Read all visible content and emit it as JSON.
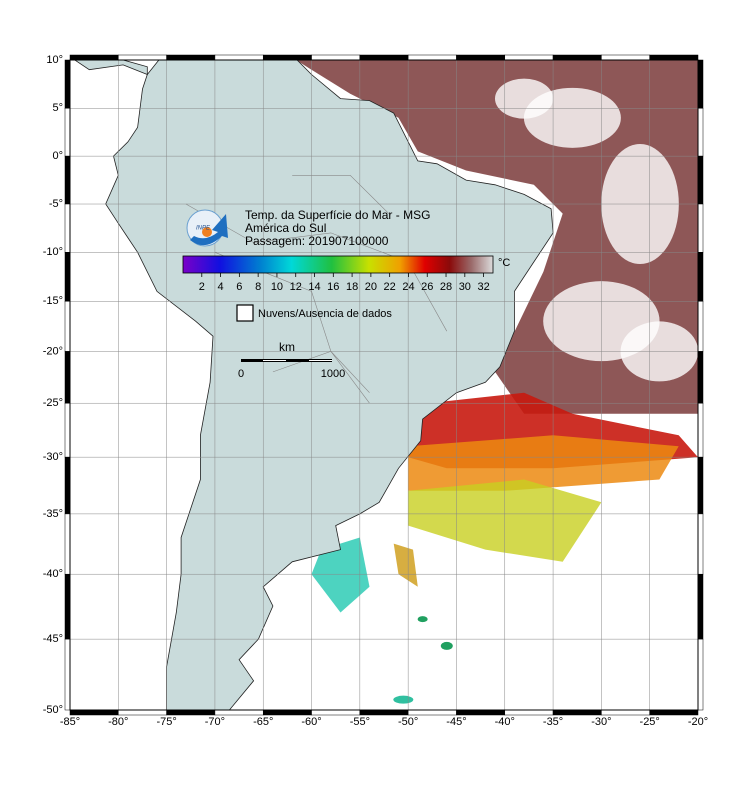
{
  "map": {
    "lon_ticks": [
      {
        "value": -85,
        "label": "-85°"
      },
      {
        "value": -80,
        "label": "-80°"
      },
      {
        "value": -75,
        "label": "-75°"
      },
      {
        "value": -70,
        "label": "-70°"
      },
      {
        "value": -65,
        "label": "-65°"
      },
      {
        "value": -60,
        "label": "-60°"
      },
      {
        "value": -55,
        "label": "-55°"
      },
      {
        "value": -50,
        "label": "-50°"
      },
      {
        "value": -45,
        "label": "-45°"
      },
      {
        "value": -40,
        "label": "-40°"
      },
      {
        "value": -35,
        "label": "-35°"
      },
      {
        "value": -30,
        "label": "-30°"
      },
      {
        "value": -25,
        "label": "-25°"
      },
      {
        "value": -20,
        "label": "-20°"
      }
    ],
    "lat_ticks": [
      {
        "value": 10,
        "label": "10°"
      },
      {
        "value": 5,
        "label": "5°"
      },
      {
        "value": 0,
        "label": "0°"
      },
      {
        "value": -5,
        "label": "-5°"
      },
      {
        "value": -10,
        "label": "-10°"
      },
      {
        "value": -15,
        "label": "-15°"
      },
      {
        "value": -20,
        "label": "-20°"
      },
      {
        "value": -25,
        "label": "-25°"
      },
      {
        "value": -30,
        "label": "-30°"
      },
      {
        "value": -35,
        "label": "-35°"
      },
      {
        "value": -40,
        "label": "-40°"
      },
      {
        "value": -45,
        "label": "-45°"
      },
      {
        "value": -50,
        "label": "-50°"
      }
    ]
  },
  "legend": {
    "logo": "INPE",
    "title_lines": [
      "Temp. da Superfície do Mar - MSG",
      "América do Sul",
      "Passagem: 201907100000"
    ],
    "colorbar": {
      "range": [
        0,
        33
      ],
      "ticks": [
        2,
        4,
        6,
        8,
        10,
        12,
        14,
        16,
        18,
        20,
        22,
        24,
        26,
        28,
        30,
        32
      ],
      "unit": "°C"
    },
    "cloud_label": "Nuvens/Ausencia de dados",
    "scale": {
      "unit": "km",
      "labels": [
        "0",
        "1000"
      ]
    }
  }
}
